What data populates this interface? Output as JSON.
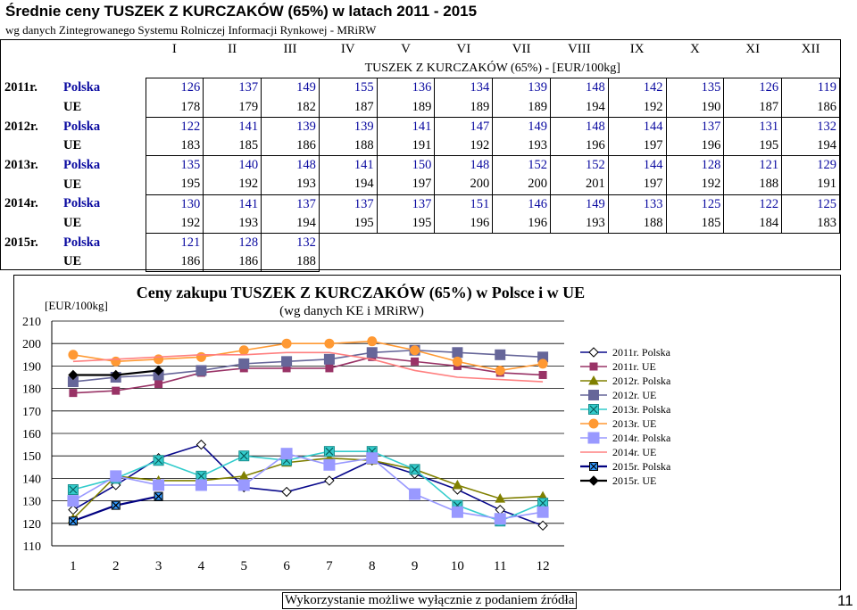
{
  "header": {
    "title": "Średnie ceny TUSZEK Z KURCZAKÓW (65%) w latach 2011 - 2015",
    "subtitle": "wg danych Zintegrowanego Systemu Rolniczej Informacji Rynkowej - MRiRW"
  },
  "table": {
    "months": [
      "I",
      "II",
      "III",
      "IV",
      "V",
      "VI",
      "VII",
      "VIII",
      "IX",
      "X",
      "XI",
      "XII"
    ],
    "caption": "TUSZEK Z KURCZAKÓW (65%) - [EUR/100kg]",
    "rows": [
      {
        "year": "2011r.",
        "country": "Polska",
        "values": [
          "126",
          "137",
          "149",
          "155",
          "136",
          "134",
          "139",
          "148",
          "142",
          "135",
          "126",
          "119"
        ]
      },
      {
        "year": "",
        "country": "UE",
        "values": [
          "178",
          "179",
          "182",
          "187",
          "189",
          "189",
          "189",
          "194",
          "192",
          "190",
          "187",
          "186"
        ]
      },
      {
        "year": "2012r.",
        "country": "Polska",
        "values": [
          "122",
          "141",
          "139",
          "139",
          "141",
          "147",
          "149",
          "148",
          "144",
          "137",
          "131",
          "132"
        ]
      },
      {
        "year": "",
        "country": "UE",
        "values": [
          "183",
          "185",
          "186",
          "188",
          "191",
          "192",
          "193",
          "196",
          "197",
          "196",
          "195",
          "194"
        ]
      },
      {
        "year": "2013r.",
        "country": "Polska",
        "values": [
          "135",
          "140",
          "148",
          "141",
          "150",
          "148",
          "152",
          "152",
          "144",
          "128",
          "121",
          "129"
        ]
      },
      {
        "year": "",
        "country": "UE",
        "values": [
          "195",
          "192",
          "193",
          "194",
          "197",
          "200",
          "200",
          "201",
          "197",
          "192",
          "188",
          "191"
        ]
      },
      {
        "year": "2014r.",
        "country": "Polska",
        "values": [
          "130",
          "141",
          "137",
          "137",
          "137",
          "151",
          "146",
          "149",
          "133",
          "125",
          "122",
          "125"
        ]
      },
      {
        "year": "",
        "country": "UE",
        "values": [
          "192",
          "193",
          "194",
          "195",
          "195",
          "196",
          "196",
          "193",
          "188",
          "185",
          "184",
          "183"
        ]
      },
      {
        "year": "2015r.",
        "country": "Polska",
        "values": [
          "121",
          "128",
          "132",
          "",
          "",
          "",
          "",
          "",
          "",
          "",
          "",
          ""
        ]
      },
      {
        "year": "",
        "country": "UE",
        "values": [
          "186",
          "186",
          "188",
          "",
          "",
          "",
          "",
          "",
          "",
          "",
          "",
          ""
        ]
      }
    ]
  },
  "chart_data": {
    "type": "line",
    "title": "Ceny zakupu TUSZEK Z KURCZAKÓW (65%) w Polsce i w UE",
    "subtitle": "(wg danych KE i MRiRW)",
    "unit_label": "[EUR/100kg]",
    "x": [
      1,
      2,
      3,
      4,
      5,
      6,
      7,
      8,
      9,
      10,
      11,
      12
    ],
    "ylim": [
      110,
      210
    ],
    "yticks": [
      110,
      120,
      130,
      140,
      150,
      160,
      170,
      180,
      190,
      200,
      210
    ],
    "grid": "horizontal",
    "legend_position": "right",
    "series": [
      {
        "name": "2011r. Polska",
        "color": "#0a0a8c",
        "marker": "diamond-open",
        "values": [
          126,
          137,
          149,
          155,
          136,
          134,
          139,
          148,
          142,
          135,
          126,
          119
        ]
      },
      {
        "name": "2011r. UE",
        "color": "#993366",
        "marker": "square",
        "values": [
          178,
          179,
          182,
          187,
          189,
          189,
          189,
          194,
          192,
          190,
          187,
          186
        ]
      },
      {
        "name": "2012r. Polska",
        "color": "#808000",
        "marker": "triangle",
        "values": [
          122,
          141,
          139,
          139,
          141,
          147,
          149,
          148,
          144,
          137,
          131,
          132
        ]
      },
      {
        "name": "2012r. UE",
        "color": "#666699",
        "marker": "square-big",
        "values": [
          183,
          185,
          186,
          188,
          191,
          192,
          193,
          196,
          197,
          196,
          195,
          194
        ]
      },
      {
        "name": "2013r. Polska",
        "color": "#33cccc",
        "marker": "x-square",
        "values": [
          135,
          140,
          148,
          141,
          150,
          148,
          152,
          152,
          144,
          128,
          121,
          129
        ]
      },
      {
        "name": "2013r. UE",
        "color": "#ff9933",
        "marker": "circle",
        "values": [
          195,
          192,
          193,
          194,
          197,
          200,
          200,
          201,
          197,
          192,
          188,
          191
        ]
      },
      {
        "name": "2014r. Polska",
        "color": "#9999ff",
        "marker": "square-light",
        "values": [
          130,
          141,
          137,
          137,
          137,
          151,
          146,
          149,
          133,
          125,
          122,
          125
        ]
      },
      {
        "name": "2014r. UE",
        "color": "#ff8080",
        "marker": "none",
        "values": [
          192,
          193,
          194,
          195,
          195,
          196,
          196,
          193,
          188,
          185,
          184,
          183
        ]
      },
      {
        "name": "2015r. Polska",
        "color": "#000080",
        "marker": "x-square-dark",
        "values": [
          121,
          128,
          132,
          null,
          null,
          null,
          null,
          null,
          null,
          null,
          null,
          null
        ]
      },
      {
        "name": "2015r. UE",
        "color": "#000000",
        "marker": "diamond-filled",
        "values": [
          186,
          186,
          188,
          null,
          null,
          null,
          null,
          null,
          null,
          null,
          null,
          null
        ]
      }
    ]
  },
  "footer": {
    "note": "Wykorzystanie możliwe wyłącznie z podaniem źródła",
    "page": "11"
  }
}
